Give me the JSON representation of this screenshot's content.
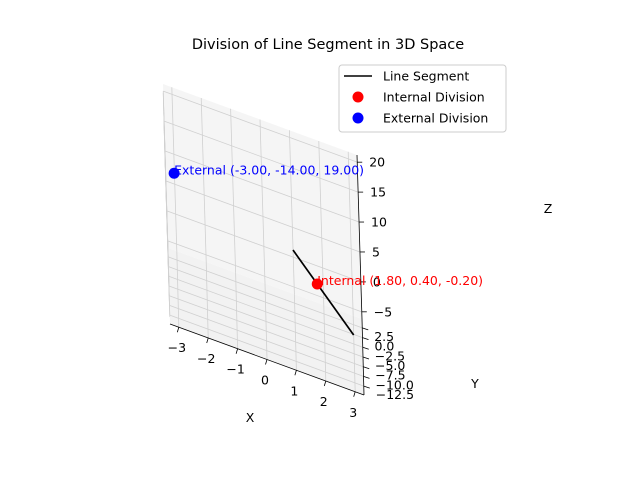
{
  "chart_data": {
    "type": "scatter",
    "projection": "3d",
    "title": "Division of Line Segment in 3D Space",
    "xlabel": "X",
    "ylabel": "Y",
    "zlabel": "Z",
    "xlim": [
      -3.3,
      3.3
    ],
    "ylim": [
      -14.8,
      4.8
    ],
    "zlim": [
      -6.2,
      21.2
    ],
    "x_ticks": [
      "−3",
      "−2",
      "−1",
      "0",
      "1",
      "2",
      "3"
    ],
    "x_tick_values": [
      -3,
      -2,
      -1,
      0,
      1,
      2,
      3
    ],
    "y_ticks": [
      "−12.5",
      "−10.0",
      "−7.5",
      "−5.0",
      "−2.5",
      "0.0",
      "2.5"
    ],
    "y_tick_values": [
      -12.5,
      -10,
      -7.5,
      -5,
      -2.5,
      0,
      2.5
    ],
    "z_ticks": [
      "−5",
      "0",
      "5",
      "10",
      "15",
      "20"
    ],
    "z_tick_values": [
      -5,
      0,
      5,
      10,
      15,
      20
    ],
    "grid": true,
    "legend_position": "top-right",
    "series": [
      {
        "name": "Line Segment",
        "kind": "line",
        "color": "#000000",
        "points": [
          [
            1,
            2,
            3
          ],
          [
            3,
            -2,
            -5
          ]
        ]
      },
      {
        "name": "Internal Division",
        "kind": "point",
        "color": "#ff0000",
        "points": [
          [
            1.8,
            0.4,
            -0.2
          ]
        ],
        "label": "Internal (1.80, 0.40, -0.20)"
      },
      {
        "name": "External Division",
        "kind": "point",
        "color": "#0000ff",
        "points": [
          [
            -3.0,
            -14.0,
            19.0
          ]
        ],
        "label": "External (-3.00, -14.00, 19.00)"
      }
    ]
  }
}
